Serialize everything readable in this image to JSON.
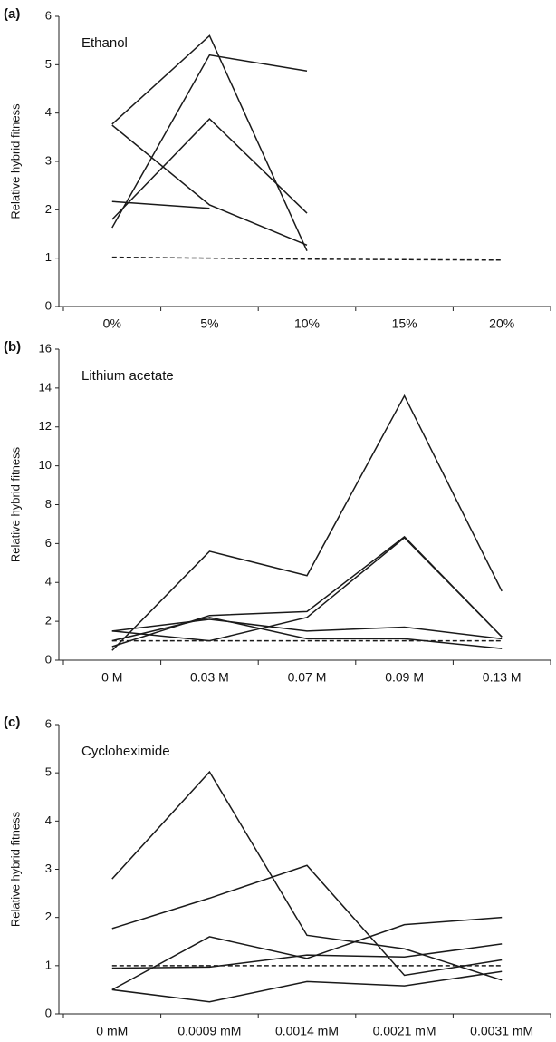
{
  "chart_data": [
    {
      "type": "line",
      "panel": "(a)",
      "title": "Ethanol",
      "y_label": "Relative hybrid fitness",
      "categories": [
        "0%",
        "5%",
        "10%",
        "15%",
        "20%"
      ],
      "ylim": [
        0,
        6
      ],
      "yticks": [
        0,
        1,
        2,
        3,
        4,
        5,
        6
      ],
      "series": [
        {
          "color": "#1a1a1a",
          "style": "solid",
          "values": [
            3.77,
            5.6,
            1.15,
            null,
            null
          ]
        },
        {
          "color": "#1a1a1a",
          "style": "solid",
          "values": [
            3.75,
            2.1,
            1.27,
            null,
            null
          ]
        },
        {
          "color": "#1a1a1a",
          "style": "solid",
          "values": [
            1.63,
            5.2,
            4.87,
            null,
            null
          ]
        },
        {
          "color": "#1a1a1a",
          "style": "solid",
          "values": [
            1.8,
            3.88,
            1.93,
            null,
            null
          ]
        },
        {
          "color": "#1a1a1a",
          "style": "solid",
          "values": [
            2.17,
            2.03,
            null,
            null,
            null
          ]
        },
        {
          "color": "#1a1a1a",
          "style": "dashed",
          "values": [
            1.02,
            1.0,
            0.98,
            0.97,
            0.96
          ]
        }
      ]
    },
    {
      "type": "line",
      "panel": "(b)",
      "title": "Lithium acetate",
      "y_label": "Relative hybrid fitness",
      "categories": [
        "0 M",
        "0.03 M",
        "0.07 M",
        "0.09 M",
        "0.13 M"
      ],
      "ylim": [
        0,
        16
      ],
      "yticks": [
        0,
        2,
        4,
        6,
        8,
        10,
        12,
        14,
        16
      ],
      "series": [
        {
          "color": "#1a1a1a",
          "style": "solid",
          "values": [
            0.5,
            5.6,
            4.35,
            13.6,
            3.55
          ]
        },
        {
          "color": "#1a1a1a",
          "style": "solid",
          "values": [
            1.5,
            1.0,
            2.2,
            6.3,
            1.2
          ]
        },
        {
          "color": "#1a1a1a",
          "style": "solid",
          "values": [
            0.7,
            2.3,
            2.5,
            6.35,
            1.2
          ]
        },
        {
          "color": "#1a1a1a",
          "style": "solid",
          "values": [
            1.5,
            2.1,
            1.5,
            1.7,
            1.1
          ]
        },
        {
          "color": "#1a1a1a",
          "style": "solid",
          "values": [
            1.0,
            2.2,
            1.1,
            1.1,
            0.6
          ]
        },
        {
          "color": "#1a1a1a",
          "style": "dashed",
          "values": [
            1.0,
            1.0,
            1.0,
            1.0,
            1.0
          ]
        }
      ]
    },
    {
      "type": "line",
      "panel": "(c)",
      "title": "Cycloheximide",
      "y_label": "Relative hybrid fitness",
      "categories": [
        "0 mM",
        "0.0009 mM",
        "0.0014 mM",
        "0.0021 mM",
        "0.0031 mM"
      ],
      "ylim": [
        0,
        6
      ],
      "yticks": [
        0,
        1,
        2,
        3,
        4,
        5,
        6
      ],
      "series": [
        {
          "color": "#1a1a1a",
          "style": "solid",
          "values": [
            2.8,
            5.02,
            1.63,
            1.35,
            0.7
          ]
        },
        {
          "color": "#1a1a1a",
          "style": "solid",
          "values": [
            1.77,
            2.4,
            3.08,
            0.8,
            1.12
          ]
        },
        {
          "color": "#1a1a1a",
          "style": "solid",
          "values": [
            0.5,
            1.6,
            1.15,
            1.85,
            2.0
          ]
        },
        {
          "color": "#1a1a1a",
          "style": "solid",
          "values": [
            0.95,
            0.97,
            1.22,
            1.18,
            1.45
          ]
        },
        {
          "color": "#1a1a1a",
          "style": "solid",
          "values": [
            0.5,
            0.25,
            0.67,
            0.58,
            0.88
          ]
        },
        {
          "color": "#1a1a1a",
          "style": "dashed",
          "values": [
            1.0,
            1.0,
            1.0,
            1.0,
            1.0
          ]
        }
      ]
    }
  ]
}
